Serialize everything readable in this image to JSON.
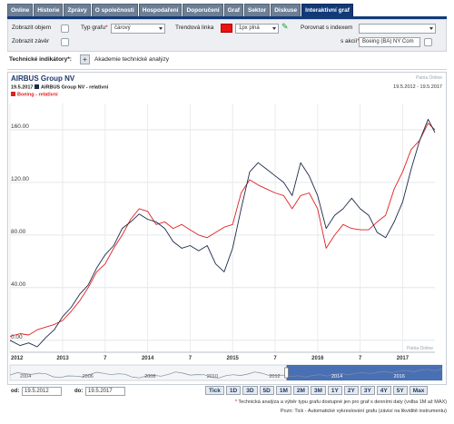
{
  "tabs": [
    "Online",
    "Historie",
    "Zprávy",
    "O společnosti",
    "Hospodaření",
    "Doporučení",
    "Graf",
    "Sektor",
    "Diskuse",
    "Interaktivní graf"
  ],
  "active_tab": 9,
  "controls": {
    "show_volume_label": "Zobrazit objem",
    "show_close_label": "Zobrazit závěr",
    "chart_type_label": "Typ grafu",
    "chart_type_value": "čárový",
    "trend_line_label": "Trendová linka",
    "trend_line_value": "1px plná",
    "trend_color": "#ee1111",
    "compare_label": "Porovnat s indexem",
    "compare_index_value": "",
    "stock_label": "s akcií",
    "stock_value": "Boeing (BA) NY Com"
  },
  "tech": {
    "label": "Technické indikátory",
    "link": "Akademie technické analýzy"
  },
  "chart": {
    "company": "AIRBUS Group NV",
    "watermark": "Patria Online",
    "legend_date": "19.5.2017",
    "series1_label": "AIRBUS Group NV - relativní",
    "series2_label": "Boeing - relativní",
    "series1_color": "#1d2a4a",
    "series2_color": "#e02020",
    "range": "19.5.2012 - 19.5.2017"
  },
  "chart_data": {
    "type": "line",
    "ylim": [
      -5,
      180
    ],
    "yticks": [
      "0.00",
      "40.00",
      "80.00",
      "120.00",
      "160.00"
    ],
    "ytick_values": [
      0,
      40,
      80,
      120,
      160
    ],
    "xtick_labels": [
      "2012",
      "2013",
      "7",
      "2014",
      "7",
      "2015",
      "7",
      "2016",
      "7",
      "2017"
    ],
    "xtick_years": [
      2012.38,
      2013.0,
      2013.5,
      2014.0,
      2014.5,
      2015.0,
      2015.5,
      2016.0,
      2016.5,
      2017.0
    ],
    "xlim": [
      2012.38,
      2017.38
    ],
    "series": [
      {
        "name": "AIRBUS Group NV - relativní",
        "x": [
          2012.38,
          2012.5,
          2012.6,
          2012.7,
          2012.8,
          2012.9,
          2013.0,
          2013.1,
          2013.2,
          2013.3,
          2013.4,
          2013.5,
          2013.6,
          2013.7,
          2013.8,
          2013.9,
          2014.0,
          2014.1,
          2014.2,
          2014.3,
          2014.4,
          2014.5,
          2014.6,
          2014.7,
          2014.8,
          2014.9,
          2015.0,
          2015.1,
          2015.2,
          2015.3,
          2015.4,
          2015.5,
          2015.6,
          2015.7,
          2015.8,
          2015.9,
          2016.0,
          2016.1,
          2016.2,
          2016.3,
          2016.4,
          2016.5,
          2016.6,
          2016.7,
          2016.8,
          2016.9,
          2017.0,
          2017.1,
          2017.2,
          2017.3,
          2017.38
        ],
        "y": [
          0,
          -4,
          -2,
          -5,
          2,
          8,
          18,
          25,
          35,
          42,
          55,
          65,
          72,
          85,
          90,
          96,
          92,
          90,
          85,
          75,
          70,
          72,
          68,
          72,
          58,
          52,
          70,
          100,
          128,
          135,
          130,
          125,
          120,
          110,
          135,
          125,
          110,
          85,
          95,
          100,
          108,
          100,
          95,
          82,
          78,
          90,
          105,
          130,
          152,
          168,
          158
        ]
      },
      {
        "name": "Boeing - relativní",
        "x": [
          2012.38,
          2012.5,
          2012.6,
          2012.7,
          2012.8,
          2012.9,
          2013.0,
          2013.1,
          2013.2,
          2013.3,
          2013.4,
          2013.5,
          2013.6,
          2013.7,
          2013.8,
          2013.9,
          2014.0,
          2014.1,
          2014.2,
          2014.3,
          2014.4,
          2014.5,
          2014.6,
          2014.7,
          2014.8,
          2014.9,
          2015.0,
          2015.1,
          2015.2,
          2015.3,
          2015.4,
          2015.5,
          2015.6,
          2015.7,
          2015.8,
          2015.9,
          2016.0,
          2016.1,
          2016.2,
          2016.3,
          2016.4,
          2016.5,
          2016.6,
          2016.7,
          2016.8,
          2016.9,
          2017.0,
          2017.1,
          2017.2,
          2017.3,
          2017.38
        ],
        "y": [
          3,
          5,
          4,
          8,
          10,
          12,
          15,
          22,
          30,
          40,
          52,
          58,
          70,
          80,
          92,
          100,
          98,
          88,
          90,
          85,
          88,
          84,
          80,
          78,
          82,
          86,
          88,
          112,
          122,
          118,
          115,
          112,
          110,
          100,
          110,
          112,
          100,
          70,
          80,
          88,
          85,
          84,
          84,
          90,
          95,
          115,
          128,
          145,
          152,
          165,
          160
        ]
      }
    ],
    "navigator_labels": [
      "2004",
      "2006",
      "2008",
      "2010",
      "2012",
      "2014",
      "2016"
    ]
  },
  "periods": [
    "Tick",
    "1D",
    "3D",
    "5D",
    "1M",
    "2M",
    "3M",
    "1Y",
    "2Y",
    "3Y",
    "4Y",
    "5Y",
    "Max"
  ],
  "dates": {
    "from_label": "od:",
    "from_value": "19.5.2012",
    "to_label": "do:",
    "to_value": "19.5.2017"
  },
  "notes": {
    "line1": "Technická analýza a výběr typu grafu dostupné jen pro graf s denními daty (volba 1M až MAX)",
    "line2": "Pozn: Tick - Automatické vykreslování grafu (závisí na likviditě instrumentu)"
  }
}
